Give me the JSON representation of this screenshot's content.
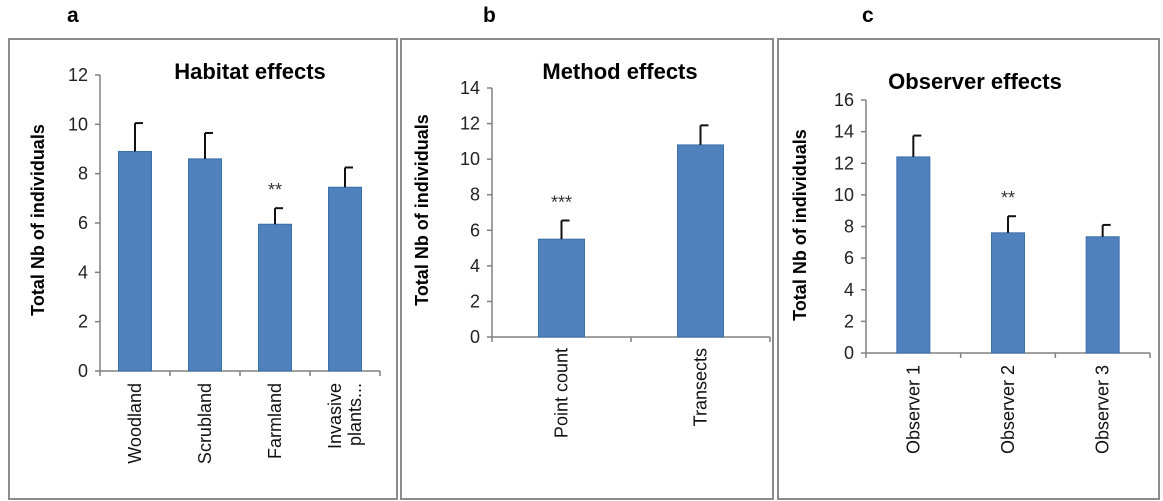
{
  "panels": [
    {
      "letter": "a"
    },
    {
      "letter": "b"
    },
    {
      "letter": "c"
    }
  ],
  "colors": {
    "bar": "#4f81bd",
    "bar_edge": "#3a6fab",
    "frame": "#8c8c8c",
    "axis": "#808080"
  },
  "chart_data": [
    {
      "type": "bar",
      "title": "Habitat effects",
      "ylabel": "Total Nb  of individuals",
      "xlabel": "",
      "categories": [
        "Woodland",
        "Scrubland",
        "Farmland",
        "Invasive plants..."
      ],
      "values": [
        8.9,
        8.6,
        5.95,
        7.45
      ],
      "errors": [
        1.15,
        1.05,
        0.65,
        0.8
      ],
      "annotations": [
        "",
        "",
        "**",
        ""
      ],
      "ylim": [
        0,
        12
      ],
      "yticks": [
        0,
        2,
        4,
        6,
        8,
        10,
        12
      ],
      "grid": false
    },
    {
      "type": "bar",
      "title": "Method effects",
      "ylabel": "Total Nb of individuals",
      "xlabel": "",
      "categories": [
        "Point count",
        "Transects"
      ],
      "values": [
        5.5,
        10.8
      ],
      "errors": [
        1.05,
        1.1
      ],
      "annotations": [
        "***",
        ""
      ],
      "ylim": [
        0,
        14
      ],
      "yticks": [
        0,
        2,
        4,
        6,
        8,
        10,
        12,
        14
      ],
      "grid": false
    },
    {
      "type": "bar",
      "title": "Observer effects",
      "ylabel": "Total Nb of individuals",
      "xlabel": "",
      "categories": [
        "Observer 1",
        "Observer 2",
        "Observer 3"
      ],
      "values": [
        12.4,
        7.6,
        7.35
      ],
      "errors": [
        1.35,
        1.05,
        0.75
      ],
      "annotations": [
        "",
        "**",
        ""
      ],
      "ylim": [
        0,
        16
      ],
      "yticks": [
        0,
        2,
        4,
        6,
        8,
        10,
        12,
        14,
        16
      ],
      "grid": false
    }
  ]
}
